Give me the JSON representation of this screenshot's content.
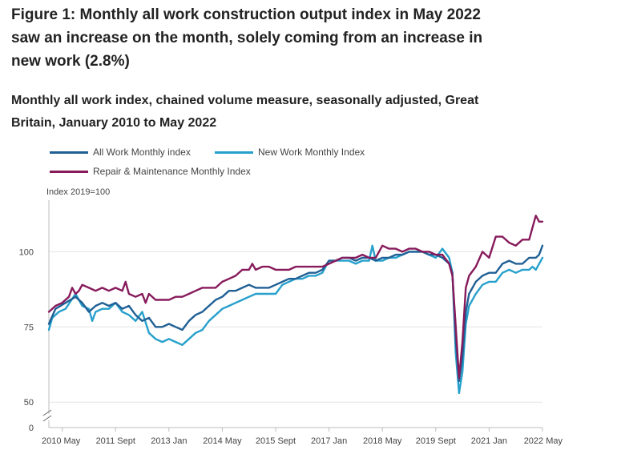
{
  "title": "Figure 1: Monthly all work construction output index in May 2022 saw an increase on the month, solely coming from an increase in new work (2.8%)",
  "subtitle": "Monthly all work index, chained volume measure, seasonally adjusted, Great Britain, January 2010 to May 2022",
  "chart_data": {
    "type": "line",
    "title": "Figure 1: Monthly all work construction output index in May 2022 saw an increase on the month, solely coming from an increase in new work (2.8%)",
    "subtitle": "Monthly all work index, chained volume measure, seasonally adjusted, Great Britain, January 2010 to May 2022",
    "ylabel": "Index 2019=100",
    "xlabel": "",
    "ylim": [
      0,
      115
    ],
    "y_axis_break": true,
    "y_ticks": [
      0,
      50,
      75,
      100
    ],
    "x_ticks": [
      "2010 May",
      "2011 Sept",
      "2013 Jan",
      "2014 May",
      "2015 Sept",
      "2017 Jan",
      "2018 May",
      "2019 Sept",
      "2021 Jan",
      "2022 May"
    ],
    "x_tick_months": [
      4,
      20,
      36,
      52,
      68,
      84,
      100,
      116,
      132,
      148
    ],
    "x_start": "2010 Jan",
    "x_end": "2022 May",
    "grid": true,
    "legend_position": "top-left",
    "series": [
      {
        "name": "All Work Monthly index",
        "color": "#206095",
        "knots": [
          [
            0,
            76
          ],
          [
            2,
            81
          ],
          [
            5,
            83
          ],
          [
            8,
            85
          ],
          [
            10,
            83
          ],
          [
            12,
            80
          ],
          [
            14,
            82
          ],
          [
            16,
            83
          ],
          [
            18,
            82
          ],
          [
            20,
            83
          ],
          [
            22,
            81
          ],
          [
            24,
            82
          ],
          [
            26,
            79
          ],
          [
            28,
            77
          ],
          [
            30,
            78
          ],
          [
            32,
            75
          ],
          [
            34,
            75
          ],
          [
            36,
            76
          ],
          [
            38,
            75
          ],
          [
            40,
            74
          ],
          [
            42,
            77
          ],
          [
            44,
            79
          ],
          [
            46,
            80
          ],
          [
            48,
            82
          ],
          [
            50,
            84
          ],
          [
            52,
            85
          ],
          [
            54,
            87
          ],
          [
            56,
            87
          ],
          [
            58,
            88
          ],
          [
            60,
            89
          ],
          [
            62,
            88
          ],
          [
            64,
            88
          ],
          [
            66,
            88
          ],
          [
            68,
            89
          ],
          [
            70,
            90
          ],
          [
            72,
            91
          ],
          [
            74,
            91
          ],
          [
            76,
            92
          ],
          [
            78,
            93
          ],
          [
            80,
            93
          ],
          [
            82,
            94
          ],
          [
            84,
            97
          ],
          [
            86,
            97
          ],
          [
            88,
            98
          ],
          [
            90,
            98
          ],
          [
            92,
            97
          ],
          [
            94,
            98
          ],
          [
            96,
            98
          ],
          [
            98,
            97
          ],
          [
            100,
            98
          ],
          [
            102,
            98
          ],
          [
            104,
            99
          ],
          [
            106,
            99
          ],
          [
            108,
            100
          ],
          [
            110,
            100
          ],
          [
            112,
            100
          ],
          [
            114,
            99
          ],
          [
            116,
            99
          ],
          [
            118,
            98
          ],
          [
            120,
            96
          ],
          [
            121,
            93
          ],
          [
            122,
            70
          ],
          [
            123,
            57
          ],
          [
            124,
            65
          ],
          [
            125,
            80
          ],
          [
            126,
            86
          ],
          [
            128,
            90
          ],
          [
            130,
            92
          ],
          [
            132,
            93
          ],
          [
            134,
            93
          ],
          [
            136,
            96
          ],
          [
            138,
            97
          ],
          [
            140,
            96
          ],
          [
            142,
            96
          ],
          [
            144,
            98
          ],
          [
            146,
            98
          ],
          [
            147,
            99
          ],
          [
            148,
            102
          ]
        ]
      },
      {
        "name": "New Work Monthly Index",
        "color": "#27a0cc",
        "knots": [
          [
            0,
            74
          ],
          [
            1,
            78
          ],
          [
            3,
            80
          ],
          [
            5,
            81
          ],
          [
            8,
            86
          ],
          [
            10,
            82
          ],
          [
            12,
            81
          ],
          [
            13,
            77
          ],
          [
            14,
            80
          ],
          [
            16,
            81
          ],
          [
            18,
            81
          ],
          [
            20,
            83
          ],
          [
            22,
            80
          ],
          [
            24,
            79
          ],
          [
            26,
            77
          ],
          [
            28,
            80
          ],
          [
            30,
            73
          ],
          [
            32,
            71
          ],
          [
            34,
            70
          ],
          [
            36,
            71
          ],
          [
            38,
            70
          ],
          [
            40,
            69
          ],
          [
            42,
            71
          ],
          [
            44,
            73
          ],
          [
            46,
            74
          ],
          [
            48,
            77
          ],
          [
            50,
            79
          ],
          [
            52,
            81
          ],
          [
            54,
            82
          ],
          [
            56,
            83
          ],
          [
            58,
            84
          ],
          [
            60,
            85
          ],
          [
            62,
            86
          ],
          [
            64,
            86
          ],
          [
            66,
            86
          ],
          [
            68,
            86
          ],
          [
            70,
            89
          ],
          [
            72,
            90
          ],
          [
            74,
            91
          ],
          [
            76,
            91
          ],
          [
            78,
            92
          ],
          [
            80,
            92
          ],
          [
            82,
            93
          ],
          [
            84,
            97
          ],
          [
            86,
            97
          ],
          [
            88,
            97
          ],
          [
            90,
            97
          ],
          [
            92,
            96
          ],
          [
            94,
            97
          ],
          [
            96,
            97
          ],
          [
            97,
            102
          ],
          [
            98,
            97
          ],
          [
            100,
            97
          ],
          [
            102,
            98
          ],
          [
            104,
            98
          ],
          [
            106,
            99
          ],
          [
            108,
            100
          ],
          [
            110,
            100
          ],
          [
            112,
            100
          ],
          [
            114,
            99
          ],
          [
            116,
            98
          ],
          [
            118,
            101
          ],
          [
            120,
            98
          ],
          [
            121,
            93
          ],
          [
            122,
            66
          ],
          [
            123,
            53
          ],
          [
            124,
            60
          ],
          [
            125,
            76
          ],
          [
            126,
            82
          ],
          [
            128,
            86
          ],
          [
            130,
            89
          ],
          [
            132,
            90
          ],
          [
            134,
            90
          ],
          [
            136,
            93
          ],
          [
            138,
            94
          ],
          [
            140,
            93
          ],
          [
            142,
            94
          ],
          [
            144,
            94
          ],
          [
            145,
            95
          ],
          [
            146,
            94
          ],
          [
            148,
            98
          ]
        ]
      },
      {
        "name": "Repair & Maintenance Monthly Index",
        "color": "#871a5b",
        "knots": [
          [
            0,
            80
          ],
          [
            2,
            82
          ],
          [
            4,
            83
          ],
          [
            6,
            85
          ],
          [
            7,
            88
          ],
          [
            8,
            86
          ],
          [
            9,
            87
          ],
          [
            10,
            89
          ],
          [
            12,
            88
          ],
          [
            14,
            87
          ],
          [
            16,
            88
          ],
          [
            18,
            87
          ],
          [
            20,
            88
          ],
          [
            22,
            87
          ],
          [
            23,
            90
          ],
          [
            24,
            86
          ],
          [
            26,
            85
          ],
          [
            28,
            86
          ],
          [
            29,
            83
          ],
          [
            30,
            86
          ],
          [
            32,
            84
          ],
          [
            34,
            84
          ],
          [
            36,
            84
          ],
          [
            38,
            85
          ],
          [
            40,
            85
          ],
          [
            42,
            86
          ],
          [
            44,
            87
          ],
          [
            46,
            88
          ],
          [
            48,
            88
          ],
          [
            50,
            88
          ],
          [
            52,
            90
          ],
          [
            54,
            91
          ],
          [
            56,
            92
          ],
          [
            58,
            94
          ],
          [
            60,
            94
          ],
          [
            61,
            96
          ],
          [
            62,
            94
          ],
          [
            64,
            95
          ],
          [
            66,
            95
          ],
          [
            68,
            94
          ],
          [
            70,
            94
          ],
          [
            72,
            94
          ],
          [
            74,
            95
          ],
          [
            76,
            95
          ],
          [
            78,
            95
          ],
          [
            80,
            95
          ],
          [
            82,
            95
          ],
          [
            84,
            96
          ],
          [
            86,
            97
          ],
          [
            88,
            98
          ],
          [
            90,
            98
          ],
          [
            92,
            98
          ],
          [
            94,
            99
          ],
          [
            96,
            98
          ],
          [
            98,
            98
          ],
          [
            100,
            102
          ],
          [
            102,
            101
          ],
          [
            104,
            101
          ],
          [
            106,
            100
          ],
          [
            108,
            101
          ],
          [
            110,
            101
          ],
          [
            112,
            100
          ],
          [
            114,
            100
          ],
          [
            116,
            99
          ],
          [
            118,
            99
          ],
          [
            120,
            96
          ],
          [
            121,
            92
          ],
          [
            122,
            75
          ],
          [
            123,
            58
          ],
          [
            124,
            70
          ],
          [
            125,
            88
          ],
          [
            126,
            92
          ],
          [
            128,
            95
          ],
          [
            130,
            100
          ],
          [
            132,
            98
          ],
          [
            134,
            105
          ],
          [
            136,
            105
          ],
          [
            138,
            103
          ],
          [
            140,
            102
          ],
          [
            142,
            104
          ],
          [
            144,
            104
          ],
          [
            145,
            108
          ],
          [
            146,
            112
          ],
          [
            147,
            110
          ],
          [
            148,
            110
          ]
        ]
      }
    ]
  }
}
